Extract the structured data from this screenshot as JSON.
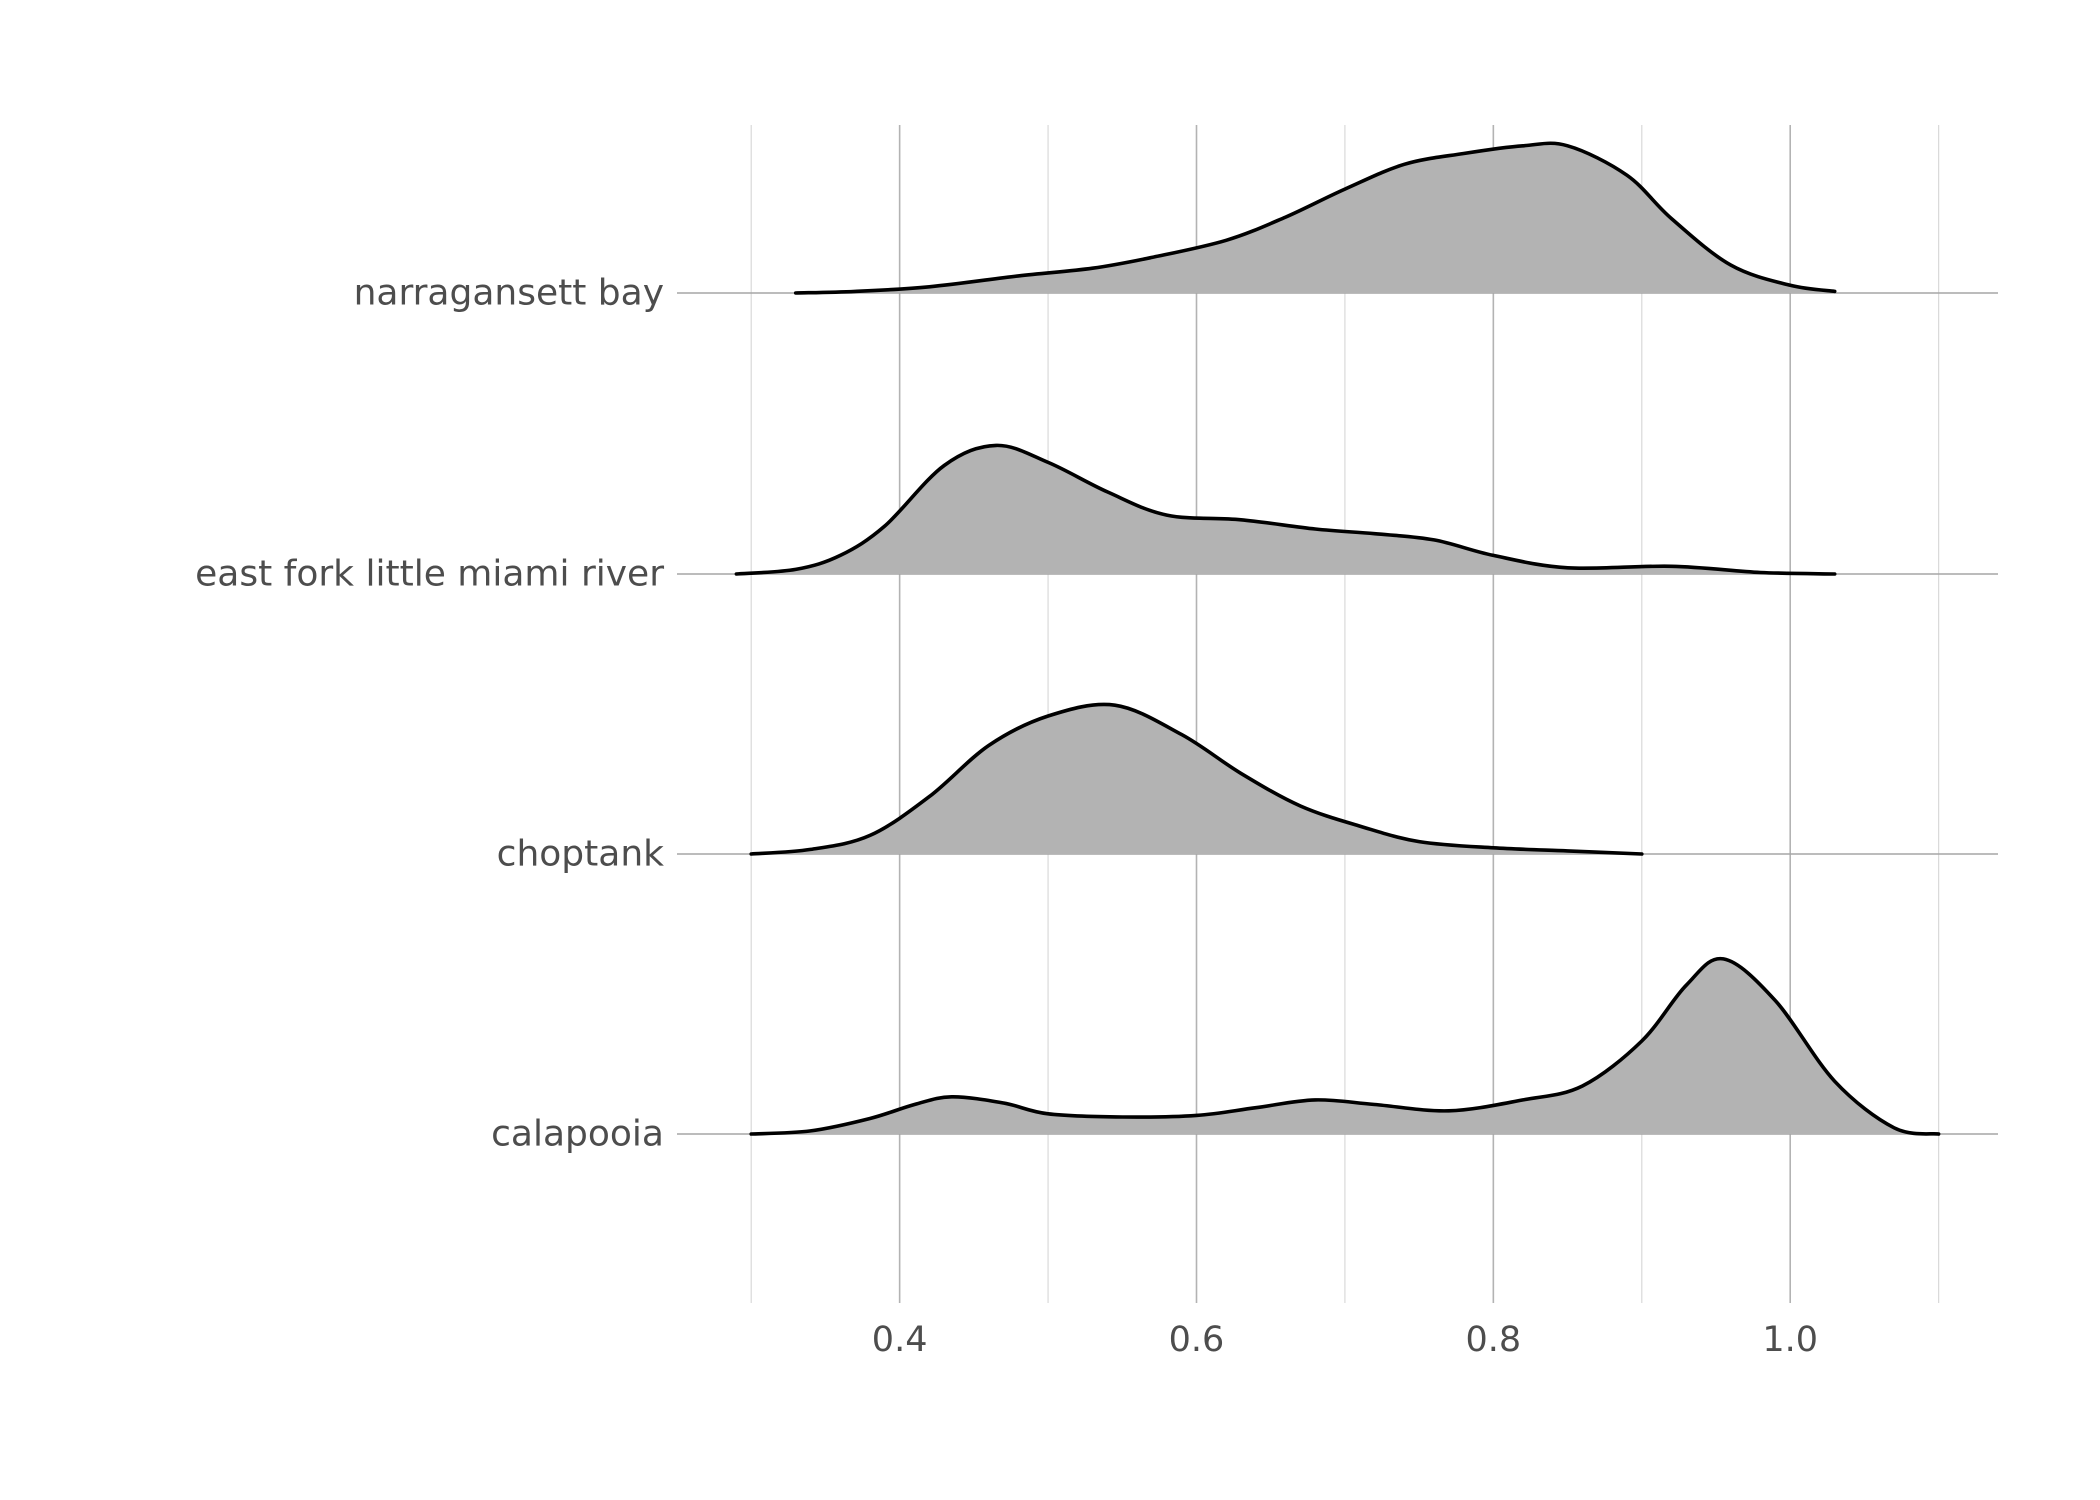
{
  "chart_data": {
    "type": "ridgeline",
    "title": "",
    "xlabel": "",
    "ylabel": "",
    "xlim": [
      0.25,
      1.14
    ],
    "x_ticks": [
      0.4,
      0.6,
      0.8,
      1.0
    ],
    "x_tick_labels": [
      "0.4",
      "0.6",
      "0.8",
      "1.0"
    ],
    "grid": true,
    "fill_color": "#b3b3b3",
    "line_color": "#000000",
    "categories": [
      "narragansett bay",
      "east fork little miami river",
      "choptank",
      "calapooia"
    ],
    "series": [
      {
        "name": "narragansett bay",
        "x": [
          0.33,
          0.37,
          0.42,
          0.48,
          0.53,
          0.57,
          0.62,
          0.66,
          0.7,
          0.74,
          0.78,
          0.82,
          0.85,
          0.89,
          0.92,
          0.96,
          1.0,
          1.03
        ],
        "density": [
          0.0,
          0.01,
          0.04,
          0.11,
          0.16,
          0.23,
          0.34,
          0.49,
          0.67,
          0.83,
          0.9,
          0.95,
          0.95,
          0.76,
          0.48,
          0.18,
          0.05,
          0.01
        ]
      },
      {
        "name": "east fork little miami river",
        "x": [
          0.29,
          0.33,
          0.36,
          0.39,
          0.43,
          0.465,
          0.5,
          0.54,
          0.58,
          0.63,
          0.68,
          0.72,
          0.76,
          0.8,
          0.85,
          0.92,
          0.98,
          1.03
        ],
        "density": [
          0.0,
          0.03,
          0.12,
          0.31,
          0.7,
          0.83,
          0.72,
          0.53,
          0.38,
          0.35,
          0.29,
          0.26,
          0.22,
          0.12,
          0.04,
          0.05,
          0.01,
          0.0
        ]
      },
      {
        "name": "choptank",
        "x": [
          0.3,
          0.34,
          0.38,
          0.42,
          0.46,
          0.5,
          0.545,
          0.59,
          0.63,
          0.67,
          0.71,
          0.75,
          0.8,
          0.85,
          0.9
        ],
        "density": [
          0.0,
          0.03,
          0.12,
          0.37,
          0.7,
          0.89,
          0.96,
          0.77,
          0.52,
          0.31,
          0.18,
          0.08,
          0.04,
          0.02,
          0.0
        ]
      },
      {
        "name": "calapooia",
        "x": [
          0.3,
          0.34,
          0.38,
          0.41,
          0.435,
          0.47,
          0.5,
          0.55,
          0.6,
          0.64,
          0.68,
          0.72,
          0.77,
          0.82,
          0.86,
          0.9,
          0.93,
          0.955,
          0.99,
          1.03,
          1.07,
          1.1
        ],
        "density": [
          0.0,
          0.02,
          0.1,
          0.19,
          0.24,
          0.2,
          0.13,
          0.11,
          0.12,
          0.17,
          0.22,
          0.19,
          0.15,
          0.22,
          0.31,
          0.6,
          0.96,
          1.13,
          0.86,
          0.34,
          0.04,
          0.0
        ]
      }
    ]
  }
}
